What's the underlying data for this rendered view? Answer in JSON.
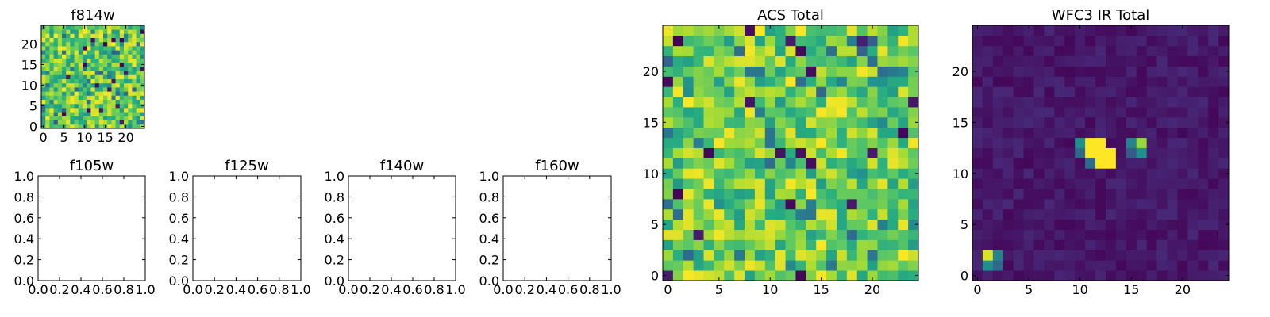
{
  "figure": {
    "background": "#ffffff",
    "colormap": "viridis"
  },
  "chart_data": [
    {
      "id": "f814w",
      "type": "heatmap",
      "title": "f814w",
      "xlim": [
        -0.5,
        24.5
      ],
      "ylim": [
        -0.5,
        24.5
      ],
      "xticks": [
        0,
        5,
        10,
        15,
        20
      ],
      "yticks": [
        0,
        5,
        10,
        15,
        20
      ],
      "grid_size": 25,
      "value_range": [
        0,
        1
      ],
      "field": "noise",
      "seed": 814
    },
    {
      "id": "f105w",
      "type": "empty",
      "title": "f105w",
      "xlim": [
        0.0,
        1.0
      ],
      "ylim": [
        0.0,
        1.0
      ],
      "xticks": [
        "0.0",
        "0.2",
        "0.4",
        "0.6",
        "0.8",
        "1.0"
      ],
      "yticks": [
        "0.0",
        "0.2",
        "0.4",
        "0.6",
        "0.8",
        "1.0"
      ]
    },
    {
      "id": "f125w",
      "type": "empty",
      "title": "f125w",
      "xlim": [
        0.0,
        1.0
      ],
      "ylim": [
        0.0,
        1.0
      ],
      "xticks": [
        "0.0",
        "0.2",
        "0.4",
        "0.6",
        "0.8",
        "1.0"
      ],
      "yticks": [
        "0.0",
        "0.2",
        "0.4",
        "0.6",
        "0.8",
        "1.0"
      ]
    },
    {
      "id": "f140w",
      "type": "empty",
      "title": "f140w",
      "xlim": [
        0.0,
        1.0
      ],
      "ylim": [
        0.0,
        1.0
      ],
      "xticks": [
        "0.0",
        "0.2",
        "0.4",
        "0.6",
        "0.8",
        "1.0"
      ],
      "yticks": [
        "0.0",
        "0.2",
        "0.4",
        "0.6",
        "0.8",
        "1.0"
      ]
    },
    {
      "id": "f160w",
      "type": "empty",
      "title": "f160w",
      "xlim": [
        0.0,
        1.0
      ],
      "ylim": [
        0.0,
        1.0
      ],
      "xticks": [
        "0.0",
        "0.2",
        "0.4",
        "0.6",
        "0.8",
        "1.0"
      ],
      "yticks": [
        "0.0",
        "0.2",
        "0.4",
        "0.6",
        "0.8",
        "1.0"
      ]
    },
    {
      "id": "acs-total",
      "type": "heatmap",
      "title": "ACS Total",
      "xlim": [
        -0.5,
        24.5
      ],
      "ylim": [
        -0.5,
        24.5
      ],
      "xticks": [
        0,
        5,
        10,
        15,
        20
      ],
      "yticks": [
        0,
        5,
        10,
        15,
        20
      ],
      "grid_size": 25,
      "value_range": [
        0,
        1
      ],
      "field": "noise",
      "seed": 2024
    },
    {
      "id": "wfc3-ir-total",
      "type": "heatmap",
      "title": "WFC3 IR Total",
      "xlim": [
        -0.5,
        24.5
      ],
      "ylim": [
        -0.5,
        24.5
      ],
      "xticks": [
        0,
        5,
        10,
        15,
        20
      ],
      "yticks": [
        0,
        5,
        10,
        15,
        20
      ],
      "grid_size": 25,
      "value_range": [
        0,
        1
      ],
      "field": "background",
      "background_level": [
        0.02,
        0.12
      ],
      "seed": 160,
      "bright_pixels": [
        {
          "x": 11,
          "y": 13,
          "value": 1.0
        },
        {
          "x": 12,
          "y": 13,
          "value": 1.0
        },
        {
          "x": 11,
          "y": 12,
          "value": 1.0
        },
        {
          "x": 12,
          "y": 12,
          "value": 1.0
        },
        {
          "x": 13,
          "y": 12,
          "value": 1.0
        },
        {
          "x": 12,
          "y": 11,
          "value": 1.0
        },
        {
          "x": 13,
          "y": 11,
          "value": 1.0
        },
        {
          "x": 10,
          "y": 13,
          "value": 0.5
        },
        {
          "x": 10,
          "y": 12,
          "value": 0.35
        },
        {
          "x": 11,
          "y": 11,
          "value": 0.35
        },
        {
          "x": 15,
          "y": 13,
          "value": 0.45
        },
        {
          "x": 16,
          "y": 13,
          "value": 0.85
        },
        {
          "x": 15,
          "y": 12,
          "value": 0.3
        },
        {
          "x": 16,
          "y": 12,
          "value": 0.5
        },
        {
          "x": 1,
          "y": 2,
          "value": 0.95
        },
        {
          "x": 2,
          "y": 2,
          "value": 0.45
        },
        {
          "x": 1,
          "y": 1,
          "value": 0.5
        },
        {
          "x": 2,
          "y": 1,
          "value": 0.35
        }
      ]
    }
  ]
}
